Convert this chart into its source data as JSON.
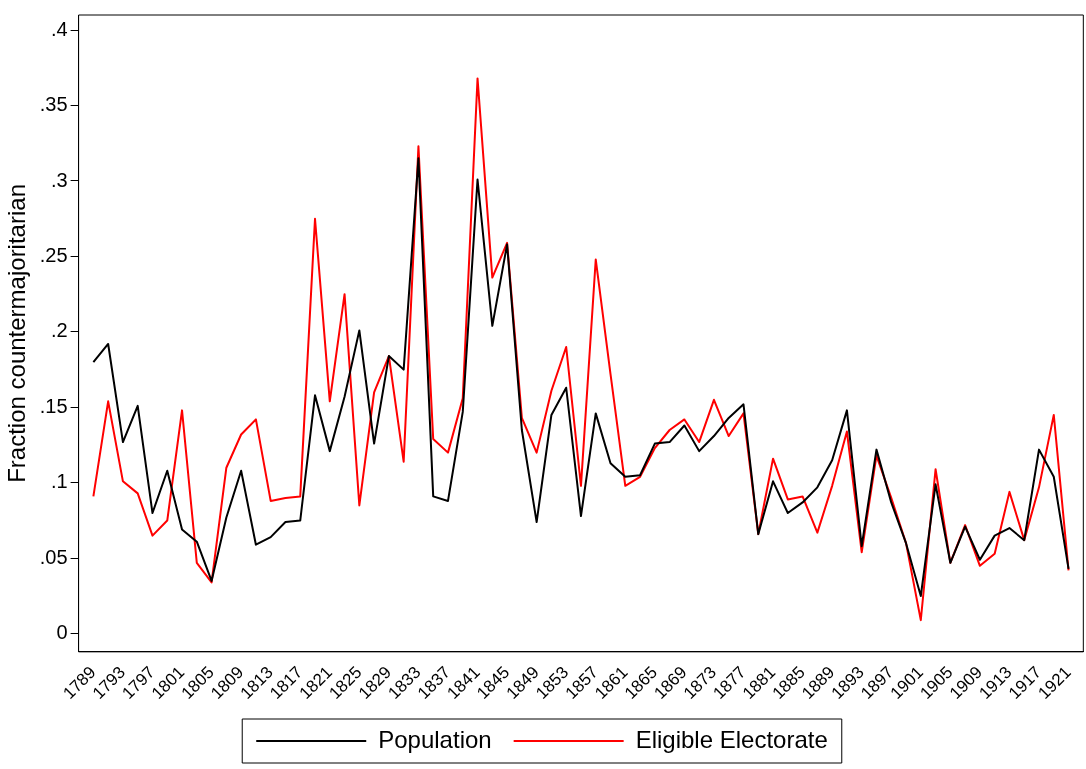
{
  "chart_data": {
    "type": "line",
    "ylabel": "Fraction countermajoritarian",
    "x": [
      1789,
      1791,
      1793,
      1795,
      1797,
      1799,
      1801,
      1803,
      1805,
      1807,
      1809,
      1811,
      1813,
      1815,
      1817,
      1819,
      1821,
      1823,
      1825,
      1827,
      1829,
      1831,
      1833,
      1835,
      1837,
      1839,
      1841,
      1843,
      1845,
      1847,
      1849,
      1851,
      1853,
      1855,
      1857,
      1859,
      1861,
      1863,
      1865,
      1867,
      1869,
      1871,
      1873,
      1875,
      1877,
      1879,
      1881,
      1883,
      1885,
      1887,
      1889,
      1891,
      1893,
      1895,
      1897,
      1899,
      1901,
      1903,
      1905,
      1907,
      1909,
      1911,
      1913,
      1915,
      1917,
      1919,
      1921
    ],
    "series": [
      {
        "name": "Population",
        "color": "#000000",
        "values": [
          0.18,
          0.192,
          0.127,
          0.151,
          0.08,
          0.108,
          0.069,
          0.061,
          0.035,
          0.077,
          0.108,
          0.059,
          0.064,
          0.074,
          0.075,
          0.158,
          0.121,
          0.157,
          0.201,
          0.126,
          0.184,
          0.175,
          0.315,
          0.091,
          0.088,
          0.147,
          0.301,
          0.204,
          0.258,
          0.135,
          0.074,
          0.145,
          0.163,
          0.078,
          0.146,
          0.113,
          0.104,
          0.105,
          0.126,
          0.127,
          0.138,
          0.121,
          0.131,
          0.143,
          0.152,
          0.066,
          0.101,
          0.08,
          0.087,
          0.097,
          0.115,
          0.148,
          0.058,
          0.122,
          0.087,
          0.06,
          0.025,
          0.099,
          0.047,
          0.071,
          0.049,
          0.065,
          0.07,
          0.062,
          0.122,
          0.104,
          0.043
        ]
      },
      {
        "name": "Eligible Electorate",
        "color": "#ff0000",
        "values": [
          0.091,
          0.154,
          0.101,
          0.093,
          0.065,
          0.075,
          0.148,
          0.047,
          0.034,
          0.11,
          0.132,
          0.142,
          0.088,
          0.09,
          0.091,
          0.275,
          0.154,
          0.225,
          0.085,
          0.16,
          0.184,
          0.114,
          0.323,
          0.129,
          0.12,
          0.156,
          0.368,
          0.236,
          0.259,
          0.143,
          0.12,
          0.161,
          0.19,
          0.098,
          0.248,
          0.172,
          0.098,
          0.104,
          0.123,
          0.135,
          0.142,
          0.127,
          0.155,
          0.131,
          0.146,
          0.066,
          0.116,
          0.089,
          0.091,
          0.067,
          0.098,
          0.134,
          0.054,
          0.118,
          0.09,
          0.06,
          0.009,
          0.109,
          0.047,
          0.072,
          0.045,
          0.053,
          0.094,
          0.062,
          0.097,
          0.145,
          0.042
        ]
      }
    ],
    "xlim": [
      1787,
      1923
    ],
    "xticks": [
      1789,
      1793,
      1797,
      1801,
      1805,
      1809,
      1813,
      1817,
      1821,
      1825,
      1829,
      1833,
      1837,
      1841,
      1845,
      1849,
      1853,
      1857,
      1861,
      1865,
      1869,
      1873,
      1877,
      1881,
      1885,
      1889,
      1893,
      1897,
      1901,
      1905,
      1909,
      1913,
      1917,
      1921
    ],
    "ylim": [
      -0.012,
      0.41
    ],
    "yticks": [
      0,
      {
        "value": 0.05,
        "label": ".05"
      },
      {
        "value": 0.1,
        "label": ".1"
      },
      {
        "value": 0.15,
        "label": ".15"
      },
      {
        "value": 0.2,
        "label": ".2"
      },
      {
        "value": 0.25,
        "label": ".25"
      },
      {
        "value": 0.3,
        "label": ".3"
      },
      {
        "value": 0.35,
        "label": ".35"
      },
      {
        "value": 0.4,
        "label": ".4"
      }
    ],
    "grid": false,
    "legend": "bottom",
    "marker": "none",
    "line_style": "solid"
  }
}
